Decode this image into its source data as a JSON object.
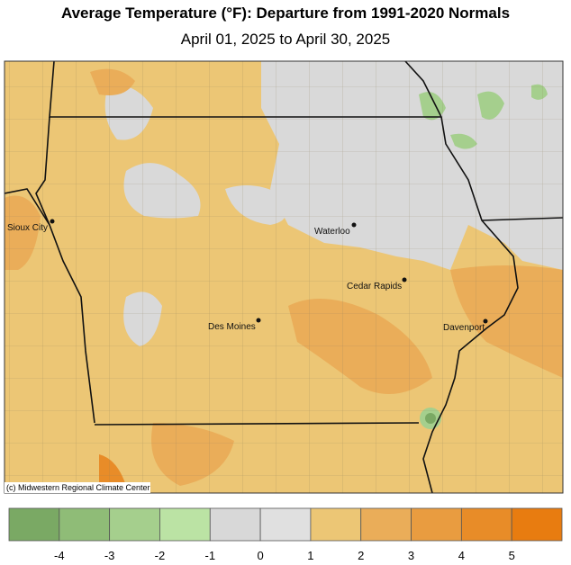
{
  "header": {
    "title": "Average Temperature (°F): Departure from 1991-2020 Normals",
    "subtitle": "April 01, 2025 to April 30, 2025"
  },
  "map": {
    "cities": [
      {
        "name": "Sioux City"
      },
      {
        "name": "Waterloo"
      },
      {
        "name": "Cedar Rapids"
      },
      {
        "name": "Des Moines"
      },
      {
        "name": "Davenport"
      }
    ],
    "credit": "(c) Midwestern Regional Climate Center"
  },
  "legend": {
    "colors": [
      "#7aa964",
      "#8fbc77",
      "#a5cf8d",
      "#bbe3a4",
      "#d8d8d8",
      "#e0e0e0",
      "#ecc675",
      "#eaad59",
      "#e99c40",
      "#e88c28",
      "#e87c10"
    ],
    "ticks": [
      -4,
      -3,
      -2,
      -1,
      0,
      1,
      2,
      3,
      4,
      5
    ]
  }
}
